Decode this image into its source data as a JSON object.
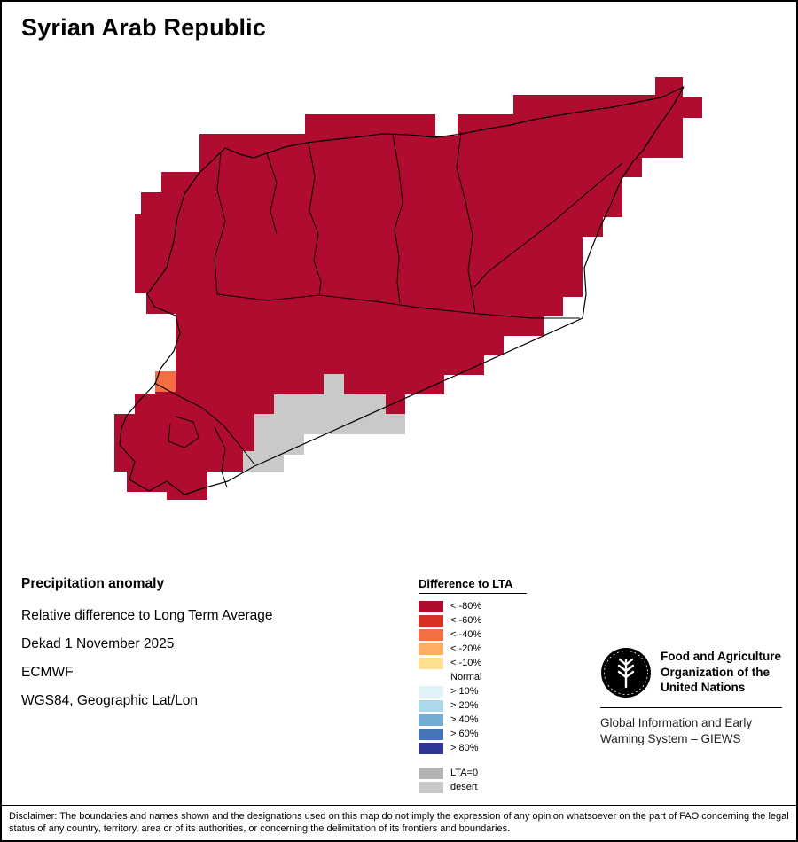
{
  "title": "Syrian Arab Republic",
  "map": {
    "fill_color": "#b00c2f",
    "anomaly_cell_color": "#f46d43",
    "gray_cell_color": "#c9c9c9",
    "boundary_color": "#000000"
  },
  "info": {
    "heading": "Precipitation anomaly",
    "lines": [
      "Relative difference to Long Term Average",
      "Dekad 1 November 2025",
      "ECMWF",
      "WGS84, Geographic Lat/Lon"
    ]
  },
  "legend": {
    "title": "Difference to LTA",
    "items": [
      {
        "label": "< -80%",
        "color": "#b00c2f"
      },
      {
        "label": "< -60%",
        "color": "#d73027"
      },
      {
        "label": "< -40%",
        "color": "#f46d43"
      },
      {
        "label": "< -20%",
        "color": "#fdae61"
      },
      {
        "label": "< -10%",
        "color": "#fee090"
      },
      {
        "label": "Normal",
        "color": "#ffffff"
      },
      {
        "label": "> 10%",
        "color": "#e0f3f8"
      },
      {
        "label": "> 20%",
        "color": "#abd9e9"
      },
      {
        "label": "> 40%",
        "color": "#74add1"
      },
      {
        "label": "> 60%",
        "color": "#4575b4"
      },
      {
        "label": "> 80%",
        "color": "#313695"
      }
    ],
    "extra_items": [
      {
        "label": "LTA=0",
        "color": "#b3b3b3"
      },
      {
        "label": "desert",
        "color": "#c9c9c9"
      }
    ]
  },
  "org": {
    "logo_text": "FAO",
    "name_lines": [
      "Food and Agriculture",
      "Organization of the",
      "United Nations"
    ],
    "subtitle_lines": [
      "Global Information and Early",
      "Warning System – GIEWS"
    ]
  },
  "disclaimer": "Disclaimer: The boundaries and names shown and the designations used on this map do not imply the expression of any opinion whatsoever on the part of FAO concerning the legal status of any country, territory, area or of its authorities, or concerning the delimitation of its frontiers and boundaries."
}
